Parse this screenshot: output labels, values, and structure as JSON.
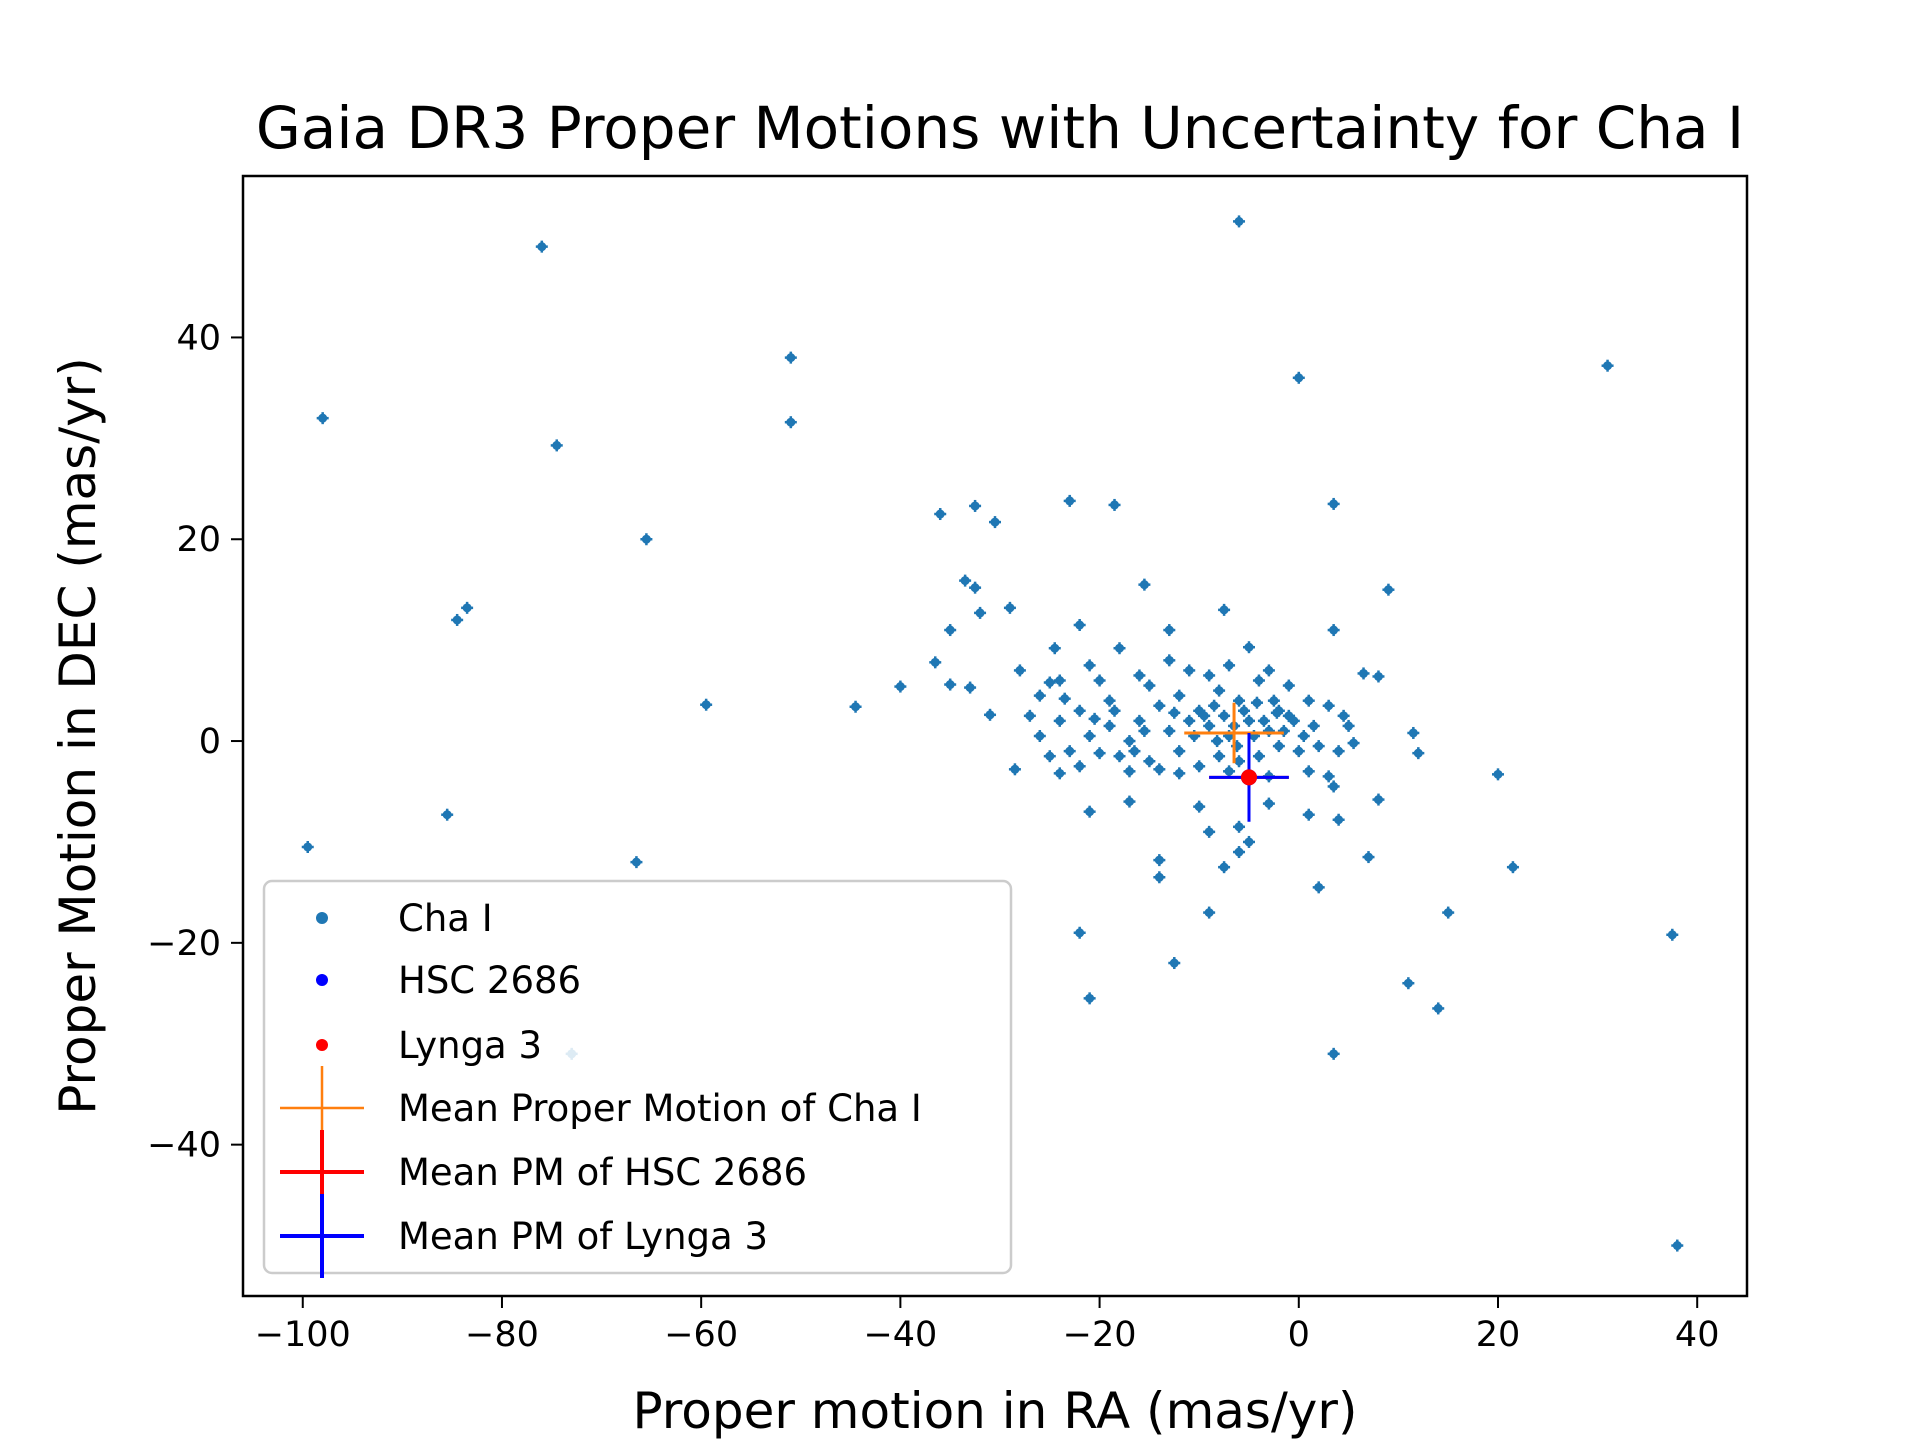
{
  "chart_data": {
    "type": "scatter",
    "title": "Gaia DR3 Proper Motions with Uncertainty for Cha I",
    "xlabel": "Proper motion in RA (mas/yr)",
    "ylabel": "Proper Motion in DEC (mas/yr)",
    "xlim": [
      -106,
      45
    ],
    "ylim": [
      -55,
      56
    ],
    "xticks": [
      -100,
      -80,
      -60,
      -40,
      -20,
      0,
      20,
      40
    ],
    "yticks": [
      -40,
      -20,
      0,
      20,
      40
    ],
    "xtick_labels": [
      "−100",
      "−80",
      "−60",
      "−40",
      "−20",
      "0",
      "20",
      "40"
    ],
    "ytick_labels": [
      "−40",
      "−20",
      "0",
      "20",
      "40"
    ],
    "grid": false,
    "legend_position": "lower-left",
    "colors": {
      "cha_i": "#1f77b4",
      "hsc_2686": "#0000ff",
      "lynga_3": "#ff0000",
      "mean_cha_i": "#ff7f0e",
      "mean_hsc_2686": "#ff0000",
      "mean_lynga_3": "#0000ff"
    },
    "series": [
      {
        "name": "Cha I",
        "kind": "scatter",
        "points": [
          [
            -6,
            51.5
          ],
          [
            -76,
            49
          ],
          [
            -51,
            38
          ],
          [
            31,
            37.2
          ],
          [
            -98,
            32
          ],
          [
            0,
            36
          ],
          [
            -51,
            31.6
          ],
          [
            -74.5,
            29.3
          ],
          [
            -65.5,
            20
          ],
          [
            -23,
            23.8
          ],
          [
            -32.5,
            23.3
          ],
          [
            -36,
            22.5
          ],
          [
            -18.5,
            23.4
          ],
          [
            -30.5,
            21.7
          ],
          [
            3.5,
            23.5
          ],
          [
            -33.5,
            15.9
          ],
          [
            -15.5,
            15.5
          ],
          [
            -32.5,
            15.2
          ],
          [
            -84.5,
            12
          ],
          [
            -83.5,
            13.2
          ],
          [
            -29,
            13.2
          ],
          [
            -32,
            12.7
          ],
          [
            -7.5,
            13
          ],
          [
            9,
            15
          ],
          [
            -35,
            11
          ],
          [
            -22,
            11.5
          ],
          [
            -13,
            11
          ],
          [
            3.5,
            11
          ],
          [
            -36.5,
            7.8
          ],
          [
            -28,
            7
          ],
          [
            -24.5,
            9.2
          ],
          [
            -18,
            9.2
          ],
          [
            -5,
            9.3
          ],
          [
            8,
            6.4
          ],
          [
            6.5,
            6.7
          ],
          [
            -40,
            5.4
          ],
          [
            -33,
            5.3
          ],
          [
            -35,
            5.6
          ],
          [
            -59.5,
            3.6
          ],
          [
            -44.5,
            3.4
          ],
          [
            -31,
            2.6
          ],
          [
            -25,
            5.8
          ],
          [
            -20,
            6
          ],
          [
            -15,
            5.5
          ],
          [
            -12,
            4.5
          ],
          [
            -10,
            3
          ],
          [
            -8,
            5
          ],
          [
            -6,
            4
          ],
          [
            -4,
            6
          ],
          [
            -2,
            3
          ],
          [
            -9,
            1.5
          ],
          [
            -7,
            0.5
          ],
          [
            -5,
            2
          ],
          [
            -3,
            1
          ],
          [
            -1,
            2.5
          ],
          [
            1,
            4
          ],
          [
            3,
            3.5
          ],
          [
            4.5,
            2.5
          ],
          [
            5,
            1.5
          ],
          [
            -11,
            2
          ],
          [
            -13,
            1
          ],
          [
            -14,
            3.5
          ],
          [
            -16,
            2
          ],
          [
            -17,
            0
          ],
          [
            -19,
            1.5
          ],
          [
            -21,
            0.5
          ],
          [
            -22,
            3
          ],
          [
            -24,
            2
          ],
          [
            -26,
            0.5
          ],
          [
            -23,
            -1
          ],
          [
            -20,
            -1.2
          ],
          [
            -18,
            -1.5
          ],
          [
            -15,
            -2
          ],
          [
            -12,
            -1
          ],
          [
            -10,
            -2.5
          ],
          [
            -8,
            -1.5
          ],
          [
            -6,
            -2
          ],
          [
            -4,
            -1.5
          ],
          [
            -2,
            -0.5
          ],
          [
            0,
            -1
          ],
          [
            2,
            -0.5
          ],
          [
            4,
            -1
          ],
          [
            5.5,
            -0.2
          ],
          [
            -9,
            6.5
          ],
          [
            -7,
            7.5
          ],
          [
            -3,
            7
          ],
          [
            -1,
            5.5
          ],
          [
            -11,
            7
          ],
          [
            -13,
            8
          ],
          [
            -16,
            6.5
          ],
          [
            -19,
            4
          ],
          [
            -21,
            7.5
          ],
          [
            -24,
            6
          ],
          [
            -26,
            4.5
          ],
          [
            -27,
            2.5
          ],
          [
            -25,
            -1.5
          ],
          [
            -22,
            -2.5
          ],
          [
            -17,
            -3
          ],
          [
            -14,
            -2.8
          ],
          [
            -12,
            -3.2
          ],
          [
            -7,
            -3
          ],
          [
            -3,
            -3.5
          ],
          [
            1,
            -3
          ],
          [
            3,
            -3.5
          ],
          [
            -9.5,
            2.5
          ],
          [
            -8.5,
            3.5
          ],
          [
            -7.5,
            2.5
          ],
          [
            -6.5,
            1.5
          ],
          [
            -5.5,
            3
          ],
          [
            -4.5,
            0.5
          ],
          [
            -3.5,
            2
          ],
          [
            -2.5,
            4
          ],
          [
            -1.5,
            1
          ],
          [
            -0.5,
            2
          ],
          [
            0.5,
            0.5
          ],
          [
            1.5,
            1.5
          ],
          [
            -10.5,
            0.5
          ],
          [
            -8.2,
            0
          ],
          [
            -6.2,
            -0.5
          ],
          [
            -4.2,
            3.8
          ],
          [
            -2.2,
            2.8
          ],
          [
            -12.5,
            2.8
          ],
          [
            -15.5,
            1
          ],
          [
            -18.5,
            3
          ],
          [
            -20.5,
            2.2
          ],
          [
            -23.5,
            4.2
          ],
          [
            -16.5,
            -1
          ],
          [
            11.5,
            0.8
          ],
          [
            12,
            -1.2
          ],
          [
            20,
            -3.3
          ],
          [
            8,
            -5.8
          ],
          [
            4,
            -7.8
          ],
          [
            3.5,
            -4.5
          ],
          [
            1,
            -7.3
          ],
          [
            -3,
            -6.2
          ],
          [
            -6,
            -8.5
          ],
          [
            -10,
            -6.5
          ],
          [
            -14,
            -11.8
          ],
          [
            -14,
            -13.5
          ],
          [
            -9,
            -9
          ],
          [
            -7.5,
            -12.5
          ],
          [
            -5,
            -10
          ],
          [
            -6,
            -11
          ],
          [
            -17,
            -6
          ],
          [
            -21,
            -7
          ],
          [
            -28.5,
            -2.8
          ],
          [
            -24,
            -3.2
          ],
          [
            -22,
            -19
          ],
          [
            -21,
            -25.5
          ],
          [
            -12.5,
            -22
          ],
          [
            -9,
            -17
          ],
          [
            2,
            -14.5
          ],
          [
            7,
            -11.5
          ],
          [
            15,
            -17
          ],
          [
            11,
            -24
          ],
          [
            14,
            -26.5
          ],
          [
            3.5,
            -31
          ],
          [
            21.5,
            -12.5
          ],
          [
            37.5,
            -19.2
          ],
          [
            38,
            -50
          ],
          [
            -85.5,
            -7.3
          ],
          [
            -66.5,
            -12
          ],
          [
            -99.5,
            -10.5
          ],
          [
            -73,
            -31
          ]
        ]
      },
      {
        "name": "HSC 2686",
        "kind": "scatter",
        "points": [
          [
            -5,
            -3.6
          ]
        ]
      },
      {
        "name": "Lynga 3",
        "kind": "scatter",
        "points": [
          [
            -5,
            -3.6
          ]
        ]
      },
      {
        "name": "Mean Proper Motion of Cha I",
        "kind": "errorbar",
        "x": -6.5,
        "y": 0.8,
        "xerr": 5,
        "yerr": 3
      },
      {
        "name": "Mean PM of HSC 2686",
        "kind": "errorbar",
        "x": -5,
        "y": -3.6,
        "xerr": 4,
        "yerr": 1
      },
      {
        "name": "Mean PM of Lynga 3",
        "kind": "errorbar",
        "x": -5,
        "y": -3.6,
        "xerr": 4,
        "yerr": 4.4
      }
    ]
  }
}
